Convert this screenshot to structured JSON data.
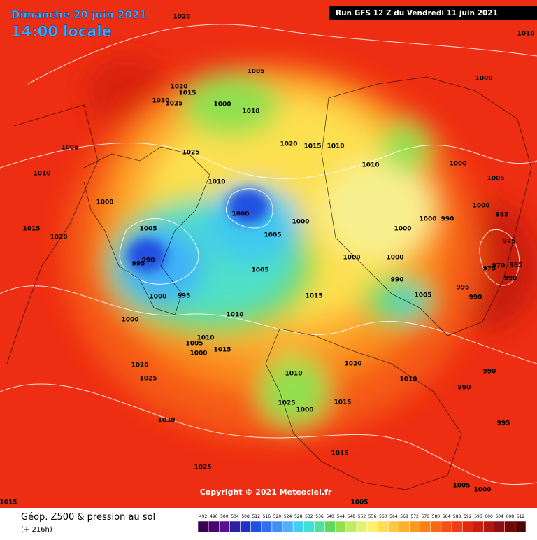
{
  "header": {
    "date": "Dimanche 20 juin 2021",
    "time": "14:00 locale",
    "run": "Run GFS 12 Z du Vendredi 11 juin 2021"
  },
  "map": {
    "isobar_labels": [
      1020,
      1010,
      1005,
      1000,
      1020,
      1015,
      1030,
      1025,
      1000,
      1010,
      1005,
      1025,
      1020,
      1015,
      1010,
      1010,
      1010,
      1010,
      1000,
      1005,
      1000,
      1000,
      1000,
      1000,
      1000,
      1000,
      990,
      1005,
      1015,
      1020,
      1005,
      995,
      990,
      1005,
      1000,
      1000,
      990,
      1000,
      995,
      1015,
      1005,
      995,
      990,
      1000,
      1010,
      1010,
      1005,
      1000,
      1015,
      1020,
      1020,
      1025,
      1010,
      1010,
      990,
      990,
      1025,
      1000,
      1015,
      1030,
      995,
      1025,
      1015,
      1005,
      1000,
      1015,
      1005,
      975,
      985,
      990,
      970,
      975,
      985
    ],
    "copyright": "Copyright © 2021 Meteociel.fr"
  },
  "footer": {
    "title": "Géop. Z500 & pression au sol",
    "lead": "(+ 216h)"
  },
  "legend": {
    "values": [
      492,
      496,
      500,
      504,
      508,
      512,
      516,
      520,
      524,
      528,
      532,
      536,
      540,
      544,
      548,
      552,
      556,
      560,
      564,
      568,
      572,
      576,
      580,
      584,
      588,
      592,
      596,
      600,
      604,
      608,
      612
    ],
    "colors": [
      "#3a0050",
      "#4a0070",
      "#5a1090",
      "#3020a0",
      "#2030c0",
      "#2050e0",
      "#3070f0",
      "#4090f8",
      "#50b0f8",
      "#40d0f0",
      "#40e0d8",
      "#50e0a0",
      "#60d860",
      "#90e050",
      "#c0ec60",
      "#e8f070",
      "#fef070",
      "#fde050",
      "#fdc840",
      "#fcb030",
      "#fb9820",
      "#f88018",
      "#f56818",
      "#f25018",
      "#ee3c14",
      "#e02a10",
      "#c82010",
      "#b01810",
      "#901010",
      "#700808",
      "#500404"
    ]
  }
}
